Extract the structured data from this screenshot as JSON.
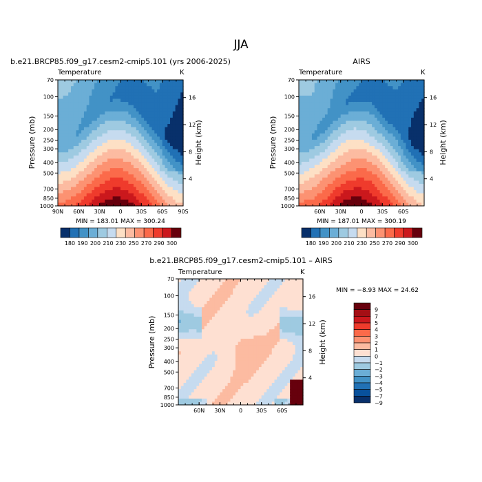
{
  "figure": {
    "title": "JJA",
    "colors": {
      "scale11": [
        "#08306b",
        "#2171b5",
        "#4292c6",
        "#6baed6",
        "#9ecae1",
        "#c6dbef",
        "#fde0c5",
        "#fcbba1",
        "#fc9272",
        "#fb6a4a",
        "#ef3b2c",
        "#cb181d",
        "#67000d"
      ],
      "diff_scale": [
        "#08306b",
        "#08519c",
        "#2171b5",
        "#4292c6",
        "#6baed6",
        "#9ecae1",
        "#c6dbef",
        "#fee0d2",
        "#fcbba1",
        "#fc9272",
        "#fb6a4a",
        "#ef3b2c",
        "#cb181d",
        "#a50f15",
        "#67000d"
      ]
    }
  },
  "chart_data": [
    {
      "type": "heatmap",
      "title": "b.e21.BRCP85.f09_g17.cesm2-cmip5.101 (yrs 2006-2025)",
      "subtitle_left": "Temperature",
      "subtitle_right": "K",
      "ylabel": "Pressure (mb)",
      "ylabel_right": "Height (km)",
      "x_ticks": [
        "90N",
        "60N",
        "30N",
        "0",
        "30S",
        "60S",
        "90S"
      ],
      "y_ticks": [
        "70",
        "100",
        "150",
        "200",
        "250",
        "300",
        "400",
        "500",
        "700",
        "850",
        "1000"
      ],
      "height_ticks": [
        "16",
        "12",
        "8",
        "4"
      ],
      "stats": "MIN = 183.01   MAX = 300.24",
      "colorbar_labels": [
        "180",
        "190",
        "200",
        "210",
        "230",
        "250",
        "270",
        "290",
        "300"
      ],
      "field": {
        "min": 183.01,
        "max": 300.24
      }
    },
    {
      "type": "heatmap",
      "title": "AIRS",
      "subtitle_left": "Temperature",
      "subtitle_right": "K",
      "ylabel": "Pressure (mb)",
      "ylabel_right": "Height (km)",
      "x_ticks": [
        "60N",
        "30N",
        "0",
        "30S",
        "60S"
      ],
      "y_ticks": [
        "70",
        "100",
        "150",
        "200",
        "250",
        "300",
        "400",
        "500",
        "700",
        "850",
        "1000"
      ],
      "height_ticks": [
        "16",
        "12",
        "8",
        "4"
      ],
      "stats": "MIN = 187.01   MAX = 300.19",
      "colorbar_labels": [
        "180",
        "190",
        "200",
        "210",
        "230",
        "250",
        "270",
        "290",
        "300"
      ],
      "field": {
        "min": 187.01,
        "max": 300.19
      }
    },
    {
      "type": "heatmap",
      "title": "b.e21.BRCP85.f09_g17.cesm2-cmip5.101 – AIRS",
      "subtitle_left": "Temperature",
      "subtitle_right": "K",
      "ylabel": "Pressure (mb)",
      "ylabel_right": "Height (km)",
      "x_ticks": [
        "60N",
        "30N",
        "0",
        "30S",
        "60S"
      ],
      "y_ticks": [
        "70",
        "100",
        "150",
        "200",
        "250",
        "300",
        "400",
        "500",
        "700",
        "850",
        "1000"
      ],
      "height_ticks": [
        "16",
        "12",
        "8",
        "4"
      ],
      "stats": "MIN =  −8.93   MAX =   24.62",
      "colorbar_labels": [
        "9",
        "7",
        "5",
        "4",
        "3",
        "2",
        "1",
        "0",
        "−1",
        "−2",
        "−3",
        "−4",
        "−5",
        "−7",
        "−9"
      ],
      "field": {
        "min": -8.93,
        "max": 24.62
      }
    }
  ]
}
